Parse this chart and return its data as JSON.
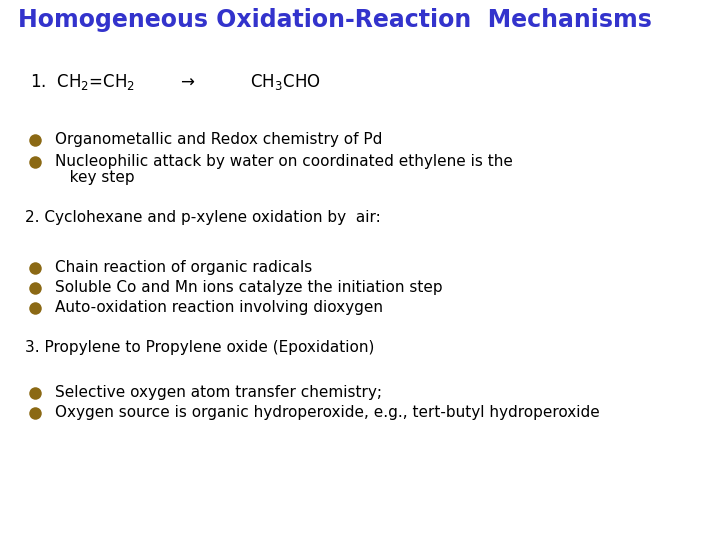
{
  "title": "Homogeneous Oxidation-Reaction  Mechanisms",
  "title_color": "#3333CC",
  "bg_color": "#FFFFFF",
  "bullet_color": "#8B6914",
  "text_color": "#000000",
  "title_fontsize": 17,
  "body_fontsize": 11,
  "heading_fontsize": 11,
  "eq_fontsize": 12,
  "item1_equation": "1.  CH$_2$=CH$_2$        $\\rightarrow$          CH$_3$CHO",
  "item1_bullets": [
    "Organometallic and Redox chemistry of Pd",
    "Nucleophilic attack by water on coordinated ethylene is the"
  ],
  "item1_bullet2_cont": "   key step",
  "item2_heading": "2. Cyclohexane and p-xylene oxidation by  air:",
  "item2_bullets": [
    "Chain reaction of organic radicals",
    "Soluble Co and Mn ions catalyze the initiation step",
    "Auto-oxidation reaction involving dioxygen"
  ],
  "item3_heading": "3. Propylene to Propylene oxide (Epoxidation)",
  "item3_bullets": [
    "Selective oxygen atom transfer chemistry;",
    "Oxygen source is organic hydroperoxide, e.g., tert-butyl hydroperoxide"
  ]
}
